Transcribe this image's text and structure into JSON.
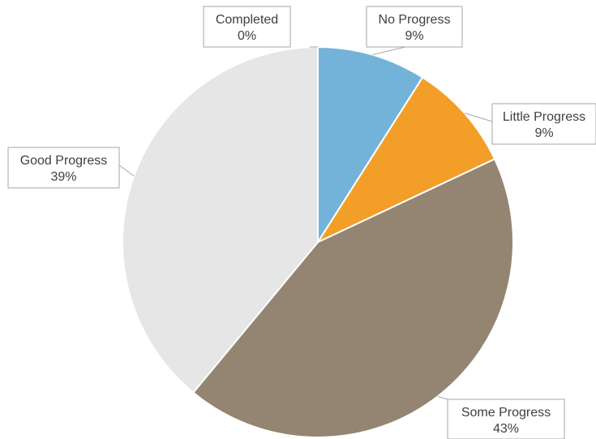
{
  "chart_data": {
    "type": "pie",
    "title": "",
    "slices": [
      {
        "label": "Completed",
        "value": 0,
        "percent_label": "0%",
        "color": "#ffffff"
      },
      {
        "label": "No Progress",
        "value": 9,
        "percent_label": "9%",
        "color": "#74b3d9"
      },
      {
        "label": "Little Progress",
        "value": 9,
        "percent_label": "9%",
        "color": "#f29e28"
      },
      {
        "label": "Some Progress",
        "value": 43,
        "percent_label": "43%",
        "color": "#948572"
      },
      {
        "label": "Good Progress",
        "value": 39,
        "percent_label": "39%",
        "color": "#e6e6e6"
      }
    ]
  }
}
